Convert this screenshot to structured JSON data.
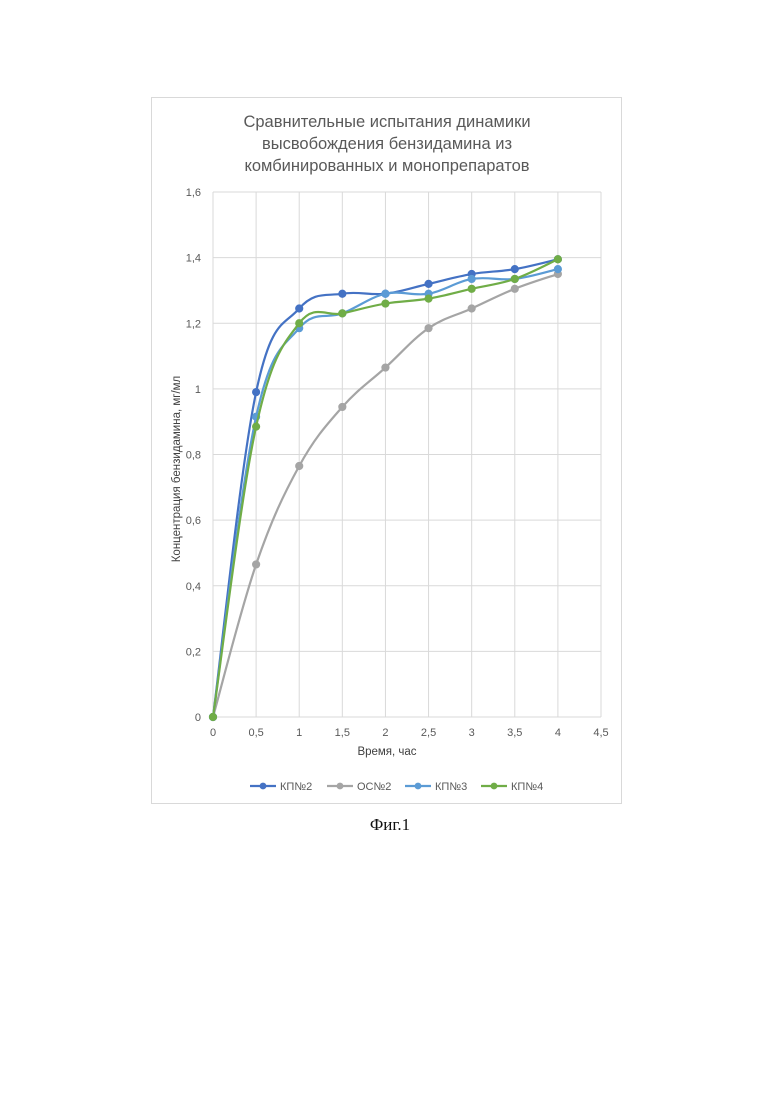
{
  "chart_data": {
    "type": "line",
    "title_lines": [
      "Сравнительные испытания динамики",
      "высвобождения бензидамина из",
      "комбинированных и монопрепаратов"
    ],
    "xlabel": "Время, час",
    "ylabel": "Концентрация бензидамина, мг/мл",
    "xlim": [
      0,
      4.5
    ],
    "ylim": [
      0,
      1.6
    ],
    "x_ticks": [
      "0",
      "0,5",
      "1",
      "1,5",
      "2",
      "2,5",
      "3",
      "3,5",
      "4",
      "4,5"
    ],
    "y_ticks": [
      "0",
      "0,2",
      "0,4",
      "0,6",
      "0,8",
      "1",
      "1,2",
      "1,4",
      "1,6"
    ],
    "grid": true,
    "legend_position": "bottom",
    "smooth": true,
    "x": [
      0,
      0.5,
      1,
      1.5,
      2,
      2.5,
      3,
      3.5,
      4
    ],
    "series": [
      {
        "name": "КП№2",
        "color": "#4472c4",
        "values": [
          0,
          0.99,
          1.245,
          1.29,
          1.29,
          1.32,
          1.35,
          1.365,
          1.395
        ]
      },
      {
        "name": "ОС№2",
        "color": "#a5a5a5",
        "values": [
          0,
          0.465,
          0.765,
          0.945,
          1.065,
          1.185,
          1.245,
          1.305,
          1.35
        ]
      },
      {
        "name": "КП№3",
        "color": "#5b9bd5",
        "values": [
          0,
          0.915,
          1.185,
          1.23,
          1.29,
          1.29,
          1.335,
          1.335,
          1.365
        ]
      },
      {
        "name": "КП№4",
        "color": "#70ad47",
        "values": [
          0,
          0.885,
          1.2,
          1.23,
          1.26,
          1.275,
          1.305,
          1.335,
          1.395
        ]
      }
    ]
  },
  "caption": "Фиг.1"
}
